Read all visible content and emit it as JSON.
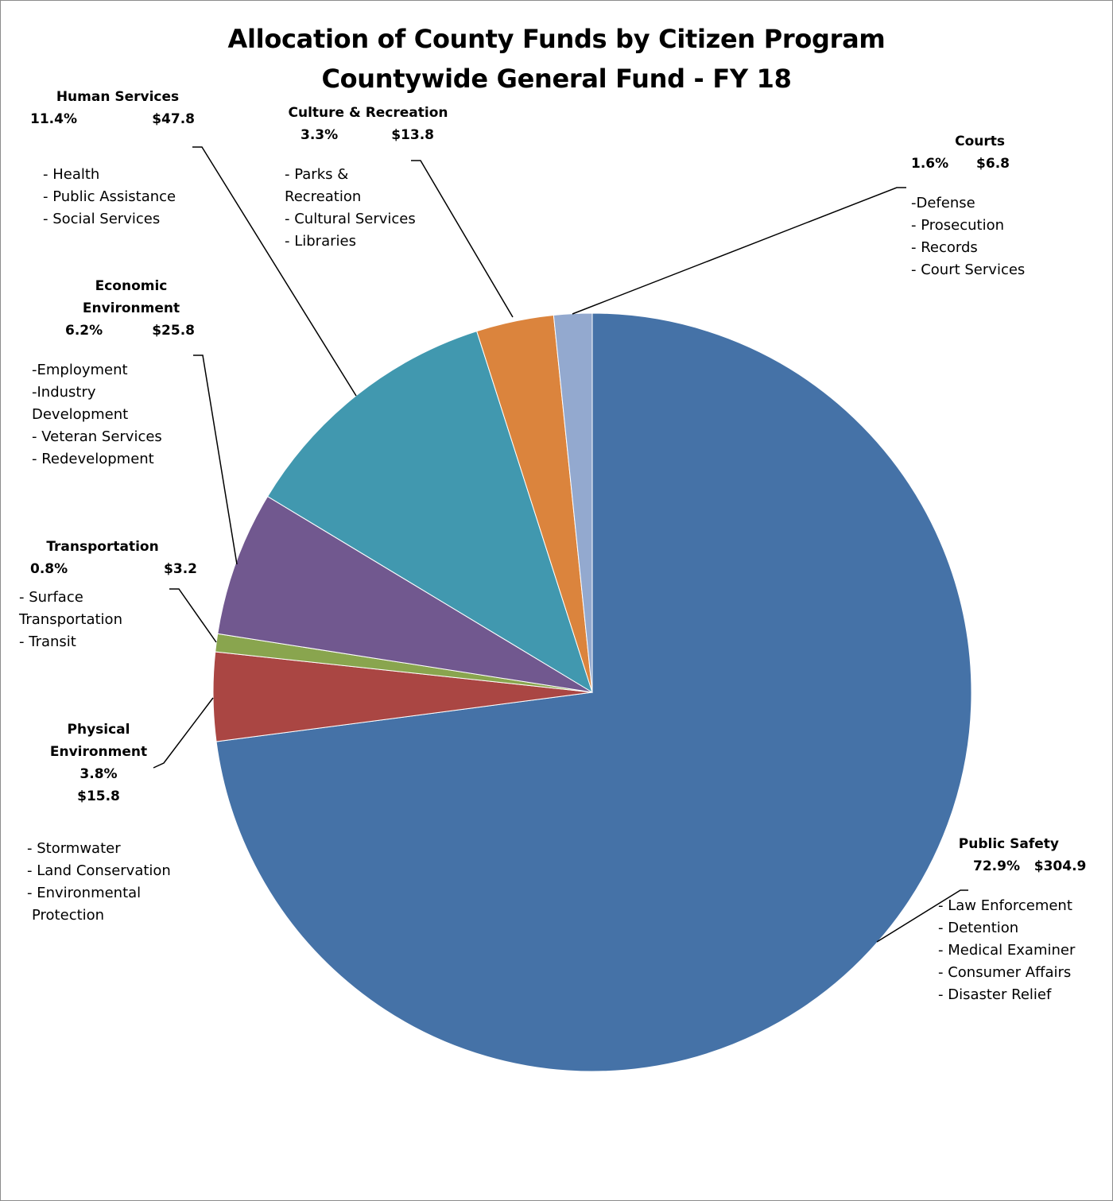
{
  "title_line1": "Allocation of County Funds by Citizen Program",
  "title_line2": "Countywide General Fund - FY 18",
  "chart_data": {
    "type": "pie",
    "title": "Allocation of County Funds by Citizen Program Countywide General Fund - FY 18",
    "slices": [
      {
        "name": "Public Safety",
        "percent": "72.9%",
        "amount": "$304.9",
        "value": 304.9,
        "color": "#4572A7",
        "items": [
          "- Law Enforcement",
          "- Detention",
          "- Medical Examiner",
          "- Consumer Affairs",
          "- Disaster Relief"
        ]
      },
      {
        "name": "Physical Environment",
        "percent": "3.8%",
        "amount": "$15.8",
        "value": 15.8,
        "color": "#AA4643",
        "items": [
          "- Stormwater",
          "- Land Conservation",
          "- Environmental",
          "Protection"
        ]
      },
      {
        "name": "Transportation",
        "percent": "0.8%",
        "amount": "$3.2",
        "value": 3.2,
        "color": "#89A54E",
        "items": [
          "- Surface",
          "Transportation",
          "- Transit"
        ]
      },
      {
        "name": "Economic Environment",
        "percent": "6.2%",
        "amount": "$25.8",
        "value": 25.8,
        "color": "#71588F",
        "items": [
          "-Employment",
          "-Industry",
          "Development",
          "- Veteran Services",
          "- Redevelopment"
        ]
      },
      {
        "name": "Human Services",
        "percent": "11.4%",
        "amount": "$47.8",
        "value": 47.8,
        "color": "#4198AF",
        "items": [
          "- Health",
          "- Public Assistance",
          "- Social Services"
        ]
      },
      {
        "name": "Culture & Recreation",
        "percent": "3.3%",
        "amount": "$13.8",
        "value": 13.8,
        "color": "#DB843D",
        "items": [
          "- Parks &",
          "Recreation",
          "- Cultural Services",
          "- Libraries"
        ]
      },
      {
        "name": "Courts",
        "percent": "1.6%",
        "amount": "$6.8",
        "value": 6.8,
        "color": "#93A9CF",
        "items": [
          "-Defense",
          "- Prosecution",
          "- Records",
          "- Court Services"
        ]
      }
    ]
  }
}
